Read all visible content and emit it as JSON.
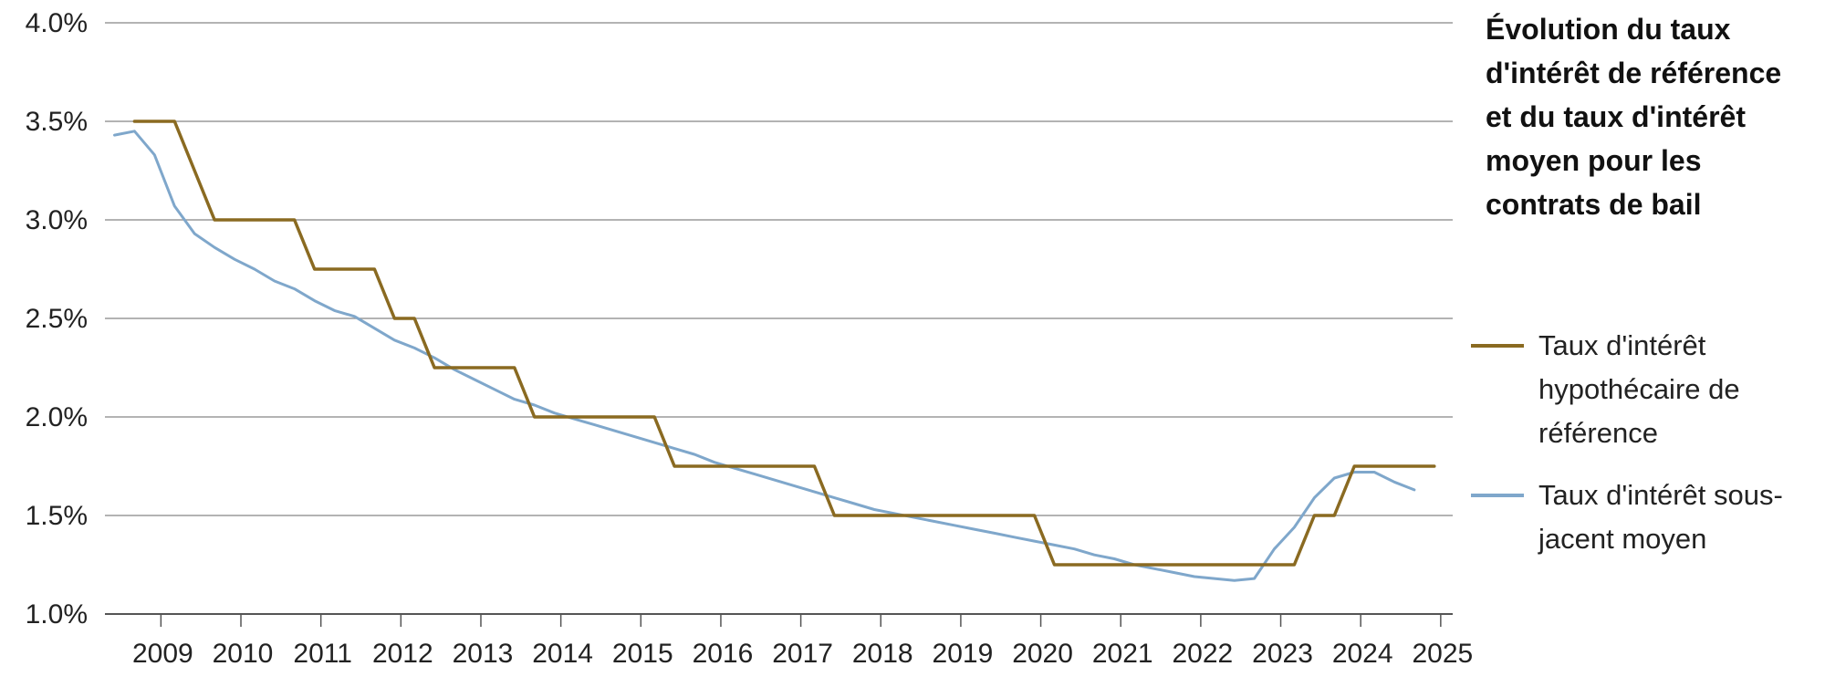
{
  "chart_data": {
    "type": "line",
    "title": "Évolution du taux d'intérêt de référence et du taux d'intérêt moyen pour les contrats de bail",
    "xlabel": "",
    "ylabel": "",
    "y_ticks": [
      "1.0%",
      "1.5%",
      "2.0%",
      "2.5%",
      "3.0%",
      "3.5%",
      "4.0%"
    ],
    "y_tick_values": [
      1.0,
      1.5,
      2.0,
      2.5,
      3.0,
      3.5,
      4.0
    ],
    "x_ticks": [
      "2009",
      "2010",
      "2011",
      "2012",
      "2013",
      "2014",
      "2015",
      "2016",
      "2017",
      "2018",
      "2019",
      "2020",
      "2021",
      "2022",
      "2023",
      "2024",
      "2025"
    ],
    "x_tick_values": [
      2009,
      2010,
      2011,
      2012,
      2013,
      2014,
      2015,
      2016,
      2017,
      2018,
      2019,
      2020,
      2021,
      2022,
      2023,
      2024,
      2025
    ],
    "xlim": [
      2008.3,
      2025.15
    ],
    "ylim": [
      1.0,
      4.0
    ],
    "grid": true,
    "legend_position": "right",
    "series": [
      {
        "name": "Taux d'intérêt hypothécaire de référence",
        "color": "#8a6a21",
        "points": [
          [
            2008.67,
            3.5
          ],
          [
            2009.17,
            3.5
          ],
          [
            2009.67,
            3.0
          ],
          [
            2010.67,
            3.0
          ],
          [
            2010.92,
            2.75
          ],
          [
            2011.67,
            2.75
          ],
          [
            2011.92,
            2.5
          ],
          [
            2012.17,
            2.5
          ],
          [
            2012.42,
            2.25
          ],
          [
            2013.42,
            2.25
          ],
          [
            2013.67,
            2.0
          ],
          [
            2015.17,
            2.0
          ],
          [
            2015.42,
            1.75
          ],
          [
            2017.17,
            1.75
          ],
          [
            2017.42,
            1.5
          ],
          [
            2019.92,
            1.5
          ],
          [
            2020.17,
            1.25
          ],
          [
            2023.17,
            1.25
          ],
          [
            2023.42,
            1.5
          ],
          [
            2023.67,
            1.5
          ],
          [
            2023.92,
            1.75
          ],
          [
            2024.92,
            1.75
          ]
        ]
      },
      {
        "name": "Taux d'intérêt sous-jacent moyen",
        "color": "#7fa7cb",
        "points": [
          [
            2008.42,
            3.43
          ],
          [
            2008.67,
            3.45
          ],
          [
            2008.92,
            3.33
          ],
          [
            2009.17,
            3.07
          ],
          [
            2009.42,
            2.93
          ],
          [
            2009.67,
            2.86
          ],
          [
            2009.92,
            2.8
          ],
          [
            2010.17,
            2.75
          ],
          [
            2010.42,
            2.69
          ],
          [
            2010.67,
            2.65
          ],
          [
            2010.92,
            2.59
          ],
          [
            2011.17,
            2.54
          ],
          [
            2011.42,
            2.51
          ],
          [
            2011.67,
            2.45
          ],
          [
            2011.92,
            2.39
          ],
          [
            2012.17,
            2.35
          ],
          [
            2012.42,
            2.3
          ],
          [
            2012.67,
            2.24
          ],
          [
            2012.92,
            2.19
          ],
          [
            2013.17,
            2.14
          ],
          [
            2013.42,
            2.09
          ],
          [
            2013.67,
            2.06
          ],
          [
            2013.92,
            2.02
          ],
          [
            2014.17,
            1.99
          ],
          [
            2014.42,
            1.96
          ],
          [
            2014.67,
            1.93
          ],
          [
            2014.92,
            1.9
          ],
          [
            2015.17,
            1.87
          ],
          [
            2015.42,
            1.84
          ],
          [
            2015.67,
            1.81
          ],
          [
            2015.92,
            1.77
          ],
          [
            2016.17,
            1.74
          ],
          [
            2016.42,
            1.71
          ],
          [
            2016.67,
            1.68
          ],
          [
            2016.92,
            1.65
          ],
          [
            2017.17,
            1.62
          ],
          [
            2017.42,
            1.59
          ],
          [
            2017.67,
            1.56
          ],
          [
            2017.92,
            1.53
          ],
          [
            2018.17,
            1.51
          ],
          [
            2018.42,
            1.49
          ],
          [
            2018.67,
            1.47
          ],
          [
            2018.92,
            1.45
          ],
          [
            2019.17,
            1.43
          ],
          [
            2019.42,
            1.41
          ],
          [
            2019.67,
            1.39
          ],
          [
            2019.92,
            1.37
          ],
          [
            2020.17,
            1.35
          ],
          [
            2020.42,
            1.33
          ],
          [
            2020.67,
            1.3
          ],
          [
            2020.92,
            1.28
          ],
          [
            2021.17,
            1.25
          ],
          [
            2021.42,
            1.23
          ],
          [
            2021.67,
            1.21
          ],
          [
            2021.92,
            1.19
          ],
          [
            2022.17,
            1.18
          ],
          [
            2022.42,
            1.17
          ],
          [
            2022.67,
            1.18
          ],
          [
            2022.92,
            1.33
          ],
          [
            2023.17,
            1.44
          ],
          [
            2023.42,
            1.59
          ],
          [
            2023.67,
            1.69
          ],
          [
            2023.92,
            1.72
          ],
          [
            2024.17,
            1.72
          ],
          [
            2024.42,
            1.67
          ],
          [
            2024.67,
            1.63
          ]
        ]
      }
    ]
  }
}
